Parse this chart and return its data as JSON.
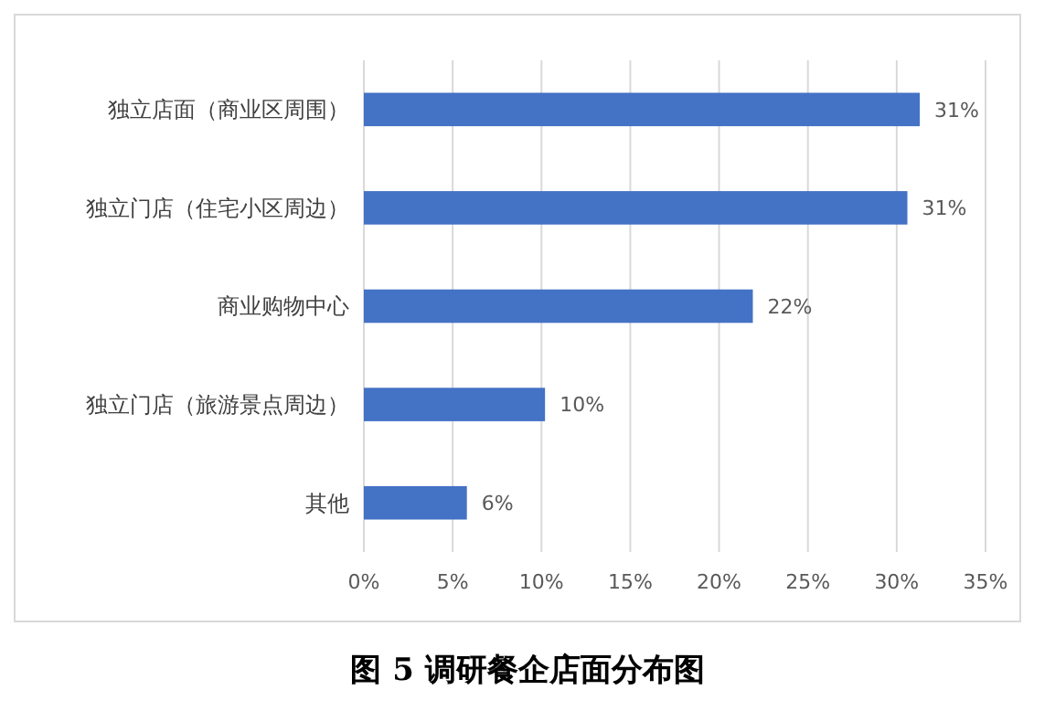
{
  "chart_data": {
    "type": "bar",
    "orientation": "horizontal",
    "title": "图 5 调研餐企店面分布图",
    "categories": [
      "独立店面（商业区周围）",
      "独立门店（住宅小区周边）",
      "商业购物中心",
      "独立门店（旅游景点周边）",
      "其他"
    ],
    "values": [
      31.3,
      30.6,
      21.9,
      10.2,
      5.8
    ],
    "value_labels": [
      "31%",
      "31%",
      "22%",
      "10%",
      "6%"
    ],
    "color": "#4472c4",
    "xlim": [
      0,
      35
    ],
    "xticks": [
      {
        "value": 0,
        "label": "0%"
      },
      {
        "value": 5,
        "label": "5%"
      },
      {
        "value": 10,
        "label": "10%"
      },
      {
        "value": 15,
        "label": "15%"
      },
      {
        "value": 20,
        "label": "20%"
      },
      {
        "value": 25,
        "label": "25%"
      },
      {
        "value": 30,
        "label": "30%"
      },
      {
        "value": 35,
        "label": "35%"
      }
    ],
    "grid": "x"
  }
}
